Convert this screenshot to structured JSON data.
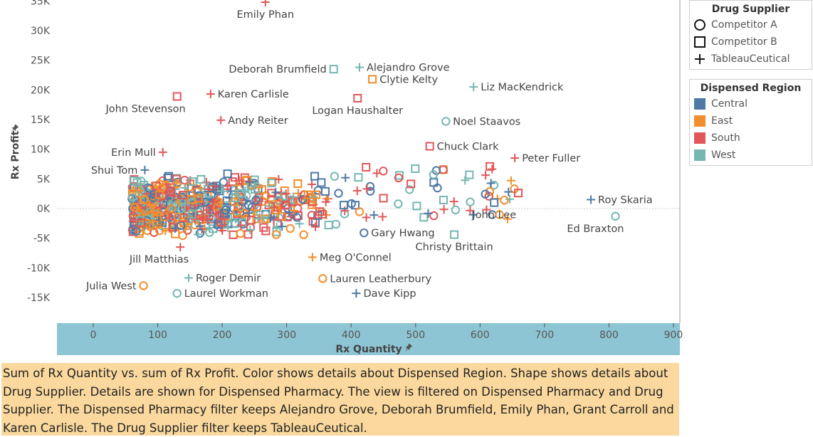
{
  "chart_data": {
    "type": "scatter",
    "xlabel": "Rx Quantity",
    "ylabel": "Rx Profit",
    "xlim": [
      -55,
      905
    ],
    "ylim": [
      -17500,
      36000
    ],
    "x_ticks": [
      0,
      100,
      200,
      300,
      400,
      500,
      600,
      700,
      800,
      900
    ],
    "x_tick_labels": [
      "0",
      "100",
      "200",
      "300",
      "400",
      "500",
      "600",
      "700",
      "800",
      "900"
    ],
    "y_ticks": [
      -15000,
      -10000,
      -5000,
      0,
      5000,
      10000,
      15000,
      20000,
      25000,
      30000,
      35000
    ],
    "y_tick_labels": [
      "-15K",
      "-10K",
      "-5K",
      "0K",
      "5K",
      "10K",
      "15K",
      "20K",
      "25K",
      "30K",
      "35K"
    ],
    "color_legend": {
      "title": "Dispensed Region",
      "items": [
        {
          "label": "Central",
          "color": "#4e79a7"
        },
        {
          "label": "East",
          "color": "#f28e2b"
        },
        {
          "label": "South",
          "color": "#e15759"
        },
        {
          "label": "West",
          "color": "#76b7b2"
        }
      ]
    },
    "shape_legend": {
      "title": "Drug Supplier",
      "items": [
        {
          "label": "Competitor A",
          "shape": "circle"
        },
        {
          "label": "Competitor B",
          "shape": "square"
        },
        {
          "label": "TableauCeutical",
          "shape": "plus"
        }
      ]
    },
    "labeled_points": [
      {
        "name": "Emily Phan",
        "x": 267,
        "y": 34800,
        "region": "South",
        "supplier": "TableauCeutical",
        "label_pos": "below"
      },
      {
        "name": "Deborah Brumfield",
        "x": 373,
        "y": 23500,
        "region": "West",
        "supplier": "Competitor B",
        "label_pos": "left"
      },
      {
        "name": "Alejandro Grove",
        "x": 413,
        "y": 23800,
        "region": "West",
        "supplier": "TableauCeutical",
        "label_pos": "right"
      },
      {
        "name": "Clytie Kelty",
        "x": 433,
        "y": 21800,
        "region": "East",
        "supplier": "Competitor B",
        "label_pos": "right"
      },
      {
        "name": "Liz MacKendrick",
        "x": 590,
        "y": 20500,
        "region": "West",
        "supplier": "TableauCeutical",
        "label_pos": "right"
      },
      {
        "name": "Karen Carlisle",
        "x": 182,
        "y": 19300,
        "region": "South",
        "supplier": "TableauCeutical",
        "label_pos": "right"
      },
      {
        "name": "John Stevenson",
        "x": 130,
        "y": 18900,
        "region": "South",
        "supplier": "Competitor B",
        "label_pos": "below-left"
      },
      {
        "name": "Logan Haushalter",
        "x": 410,
        "y": 18600,
        "region": "South",
        "supplier": "Competitor B",
        "label_pos": "below"
      },
      {
        "name": "Andy Reiter",
        "x": 198,
        "y": 14900,
        "region": "South",
        "supplier": "TableauCeutical",
        "label_pos": "right"
      },
      {
        "name": "Noel Staavos",
        "x": 547,
        "y": 14700,
        "region": "West",
        "supplier": "Competitor A",
        "label_pos": "right"
      },
      {
        "name": "Chuck Clark",
        "x": 522,
        "y": 10500,
        "region": "South",
        "supplier": "Competitor B",
        "label_pos": "right"
      },
      {
        "name": "Peter Fuller",
        "x": 654,
        "y": 8500,
        "region": "South",
        "supplier": "TableauCeutical",
        "label_pos": "right"
      },
      {
        "name": "Erin Mull",
        "x": 108,
        "y": 9500,
        "region": "South",
        "supplier": "TableauCeutical",
        "label_pos": "left"
      },
      {
        "name": "Shui Tom",
        "x": 80,
        "y": 6500,
        "region": "Central",
        "supplier": "TableauCeutical",
        "label_pos": "left"
      },
      {
        "name": "Roy Skaria",
        "x": 772,
        "y": 1500,
        "region": "Central",
        "supplier": "TableauCeutical",
        "label_pos": "right"
      },
      {
        "name": "John Lee",
        "x": 622,
        "y": 1000,
        "region": "Central",
        "supplier": "Competitor B",
        "label_pos": "below"
      },
      {
        "name": "Ed Braxton",
        "x": 810,
        "y": -1300,
        "region": "West",
        "supplier": "Competitor A",
        "label_pos": "below-left"
      },
      {
        "name": "Gary Hwang",
        "x": 420,
        "y": -4100,
        "region": "Central",
        "supplier": "Competitor A",
        "label_pos": "right"
      },
      {
        "name": "Christy Brittain",
        "x": 560,
        "y": -4400,
        "region": "West",
        "supplier": "Competitor B",
        "label_pos": "below"
      },
      {
        "name": "Jill Matthias",
        "x": 135,
        "y": -6500,
        "region": "South",
        "supplier": "TableauCeutical",
        "label_pos": "below-left"
      },
      {
        "name": "Meg O'Connel",
        "x": 340,
        "y": -8200,
        "region": "East",
        "supplier": "TableauCeutical",
        "label_pos": "right"
      },
      {
        "name": "Roger Demir",
        "x": 148,
        "y": -11700,
        "region": "West",
        "supplier": "TableauCeutical",
        "label_pos": "right"
      },
      {
        "name": "Lauren Leatherbury",
        "x": 356,
        "y": -11800,
        "region": "East",
        "supplier": "Competitor A",
        "label_pos": "right"
      },
      {
        "name": "Julia West",
        "x": 78,
        "y": -13000,
        "region": "East",
        "supplier": "Competitor A",
        "label_pos": "left"
      },
      {
        "name": "Laurel Workman",
        "x": 130,
        "y": -14300,
        "region": "West",
        "supplier": "Competitor A",
        "label_pos": "right"
      },
      {
        "name": "Dave Kipp",
        "x": 408,
        "y": -14300,
        "region": "Central",
        "supplier": "TableauCeutical",
        "label_pos": "right"
      }
    ]
  },
  "caption": "Sum of Rx Quantity vs. sum of Rx Profit.  Color shows details about Dispensed Region.  Shape shows details about Drug Supplier.  Details are shown for Dispensed Pharmacy. The view is filtered on Dispensed Pharmacy and Drug Supplier. The Dispensed Pharmacy filter keeps Alejandro Grove, Deborah Brumfield, Emily Phan, Grant Carroll and Karen Carlisle. The Drug Supplier filter keeps TableauCeutical."
}
